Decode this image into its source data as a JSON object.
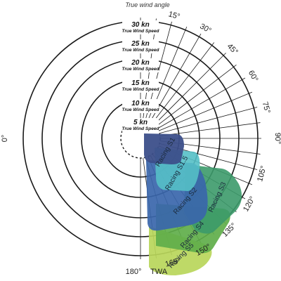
{
  "title": "True wind angle",
  "axis_end_label": "TWA",
  "angle_labels": [
    "0°",
    "15°",
    "30°",
    "45°",
    "60°",
    "75°",
    "90°",
    "105°",
    "120°",
    "135°",
    "150°",
    "165°",
    "180°"
  ],
  "wind_rings": [
    {
      "value": "5 kn",
      "sub": "True Wind Speed"
    },
    {
      "value": "10 kn",
      "sub": "True Wind Speed"
    },
    {
      "value": "15 kn",
      "sub": "True Wind Speed"
    },
    {
      "value": "20 kn",
      "sub": "True Wind Speed"
    },
    {
      "value": "25 kn",
      "sub": "True Wind Speed"
    },
    {
      "value": "30 kn",
      "sub": "True Wind Speed"
    }
  ],
  "sails": [
    {
      "label": "Racing S5",
      "color": "#b9d65a"
    },
    {
      "label": "Racing S4",
      "color": "#5fae4a"
    },
    {
      "label": "Racing S3",
      "color": "#3c9a6a"
    },
    {
      "label": "Racing S2",
      "color": "#3a66ab"
    },
    {
      "label": "Racing S1.5",
      "color": "#55c0c6"
    },
    {
      "label": "Racing S1",
      "color": "#3c4f8a"
    }
  ]
}
